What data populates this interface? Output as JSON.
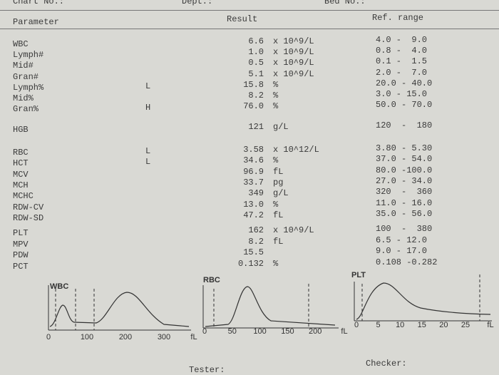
{
  "header": {
    "chart_no": "Chart No.:",
    "dept": "Dept.:",
    "bed_no": "Bed No.:"
  },
  "table": {
    "columns": [
      "Parameter",
      "Result",
      "Ref. range"
    ],
    "groups": [
      [
        [
          "WBC",
          "",
          "6.6",
          "x 10^9/L",
          "4.0 -  9.0"
        ],
        [
          "Lymph#",
          "",
          "1.0",
          "x 10^9/L",
          "0.8 -  4.0"
        ],
        [
          "Mid#",
          "",
          "0.5",
          "x 10^9/L",
          "0.1 -  1.5"
        ],
        [
          "Gran#",
          "",
          "5.1",
          "x 10^9/L",
          "2.0 -  7.0"
        ],
        [
          "Lymph%",
          "L",
          "15.8",
          "%",
          "20.0 - 40.0"
        ],
        [
          "Mid%",
          "",
          "8.2",
          "%",
          "3.0 - 15.0"
        ],
        [
          "Gran%",
          "H",
          "76.0",
          "%",
          "50.0 - 70.0"
        ]
      ],
      [
        [
          "HGB",
          "",
          "121",
          "g/L",
          "120  -  180"
        ]
      ],
      [
        [
          "RBC",
          "L",
          "3.58",
          "x 10^12/L",
          "3.80 - 5.30"
        ],
        [
          "HCT",
          "L",
          "34.6",
          "%",
          "37.0 - 54.0"
        ],
        [
          "MCV",
          "",
          "96.9",
          "fL",
          "80.0 -100.0"
        ],
        [
          "MCH",
          "",
          "33.7",
          "pg",
          "27.0 - 34.0"
        ],
        [
          "MCHC",
          "",
          "349",
          "g/L",
          "320  -  360"
        ],
        [
          "RDW-CV",
          "",
          "13.0",
          "%",
          "11.0 - 16.0"
        ],
        [
          "RDW-SD",
          "",
          "47.2",
          "fL",
          "35.0 - 56.0"
        ]
      ],
      [
        [
          "PLT",
          "",
          "162",
          "x 10^9/L",
          "100  -  380"
        ],
        [
          "MPV",
          "",
          "8.2",
          "fL",
          "6.5 - 12.0"
        ],
        [
          "PDW",
          "",
          "15.5",
          "",
          "9.0 - 17.0"
        ],
        [
          "PCT",
          "",
          "0.132",
          "%",
          "0.108 -0.282"
        ]
      ]
    ]
  },
  "histograms": [
    {
      "title": "WBC",
      "ticks": [
        "0",
        "100",
        "200",
        "300",
        "fL"
      ]
    },
    {
      "title": "RBC",
      "ticks": [
        "0",
        "50",
        "100",
        "150",
        "200",
        "fL"
      ]
    },
    {
      "title": "PLT",
      "ticks": [
        "0",
        "5",
        "10",
        "15",
        "20",
        "25",
        "fL"
      ]
    }
  ],
  "footer": {
    "tester": "Tester:",
    "checker": "Checker:"
  }
}
